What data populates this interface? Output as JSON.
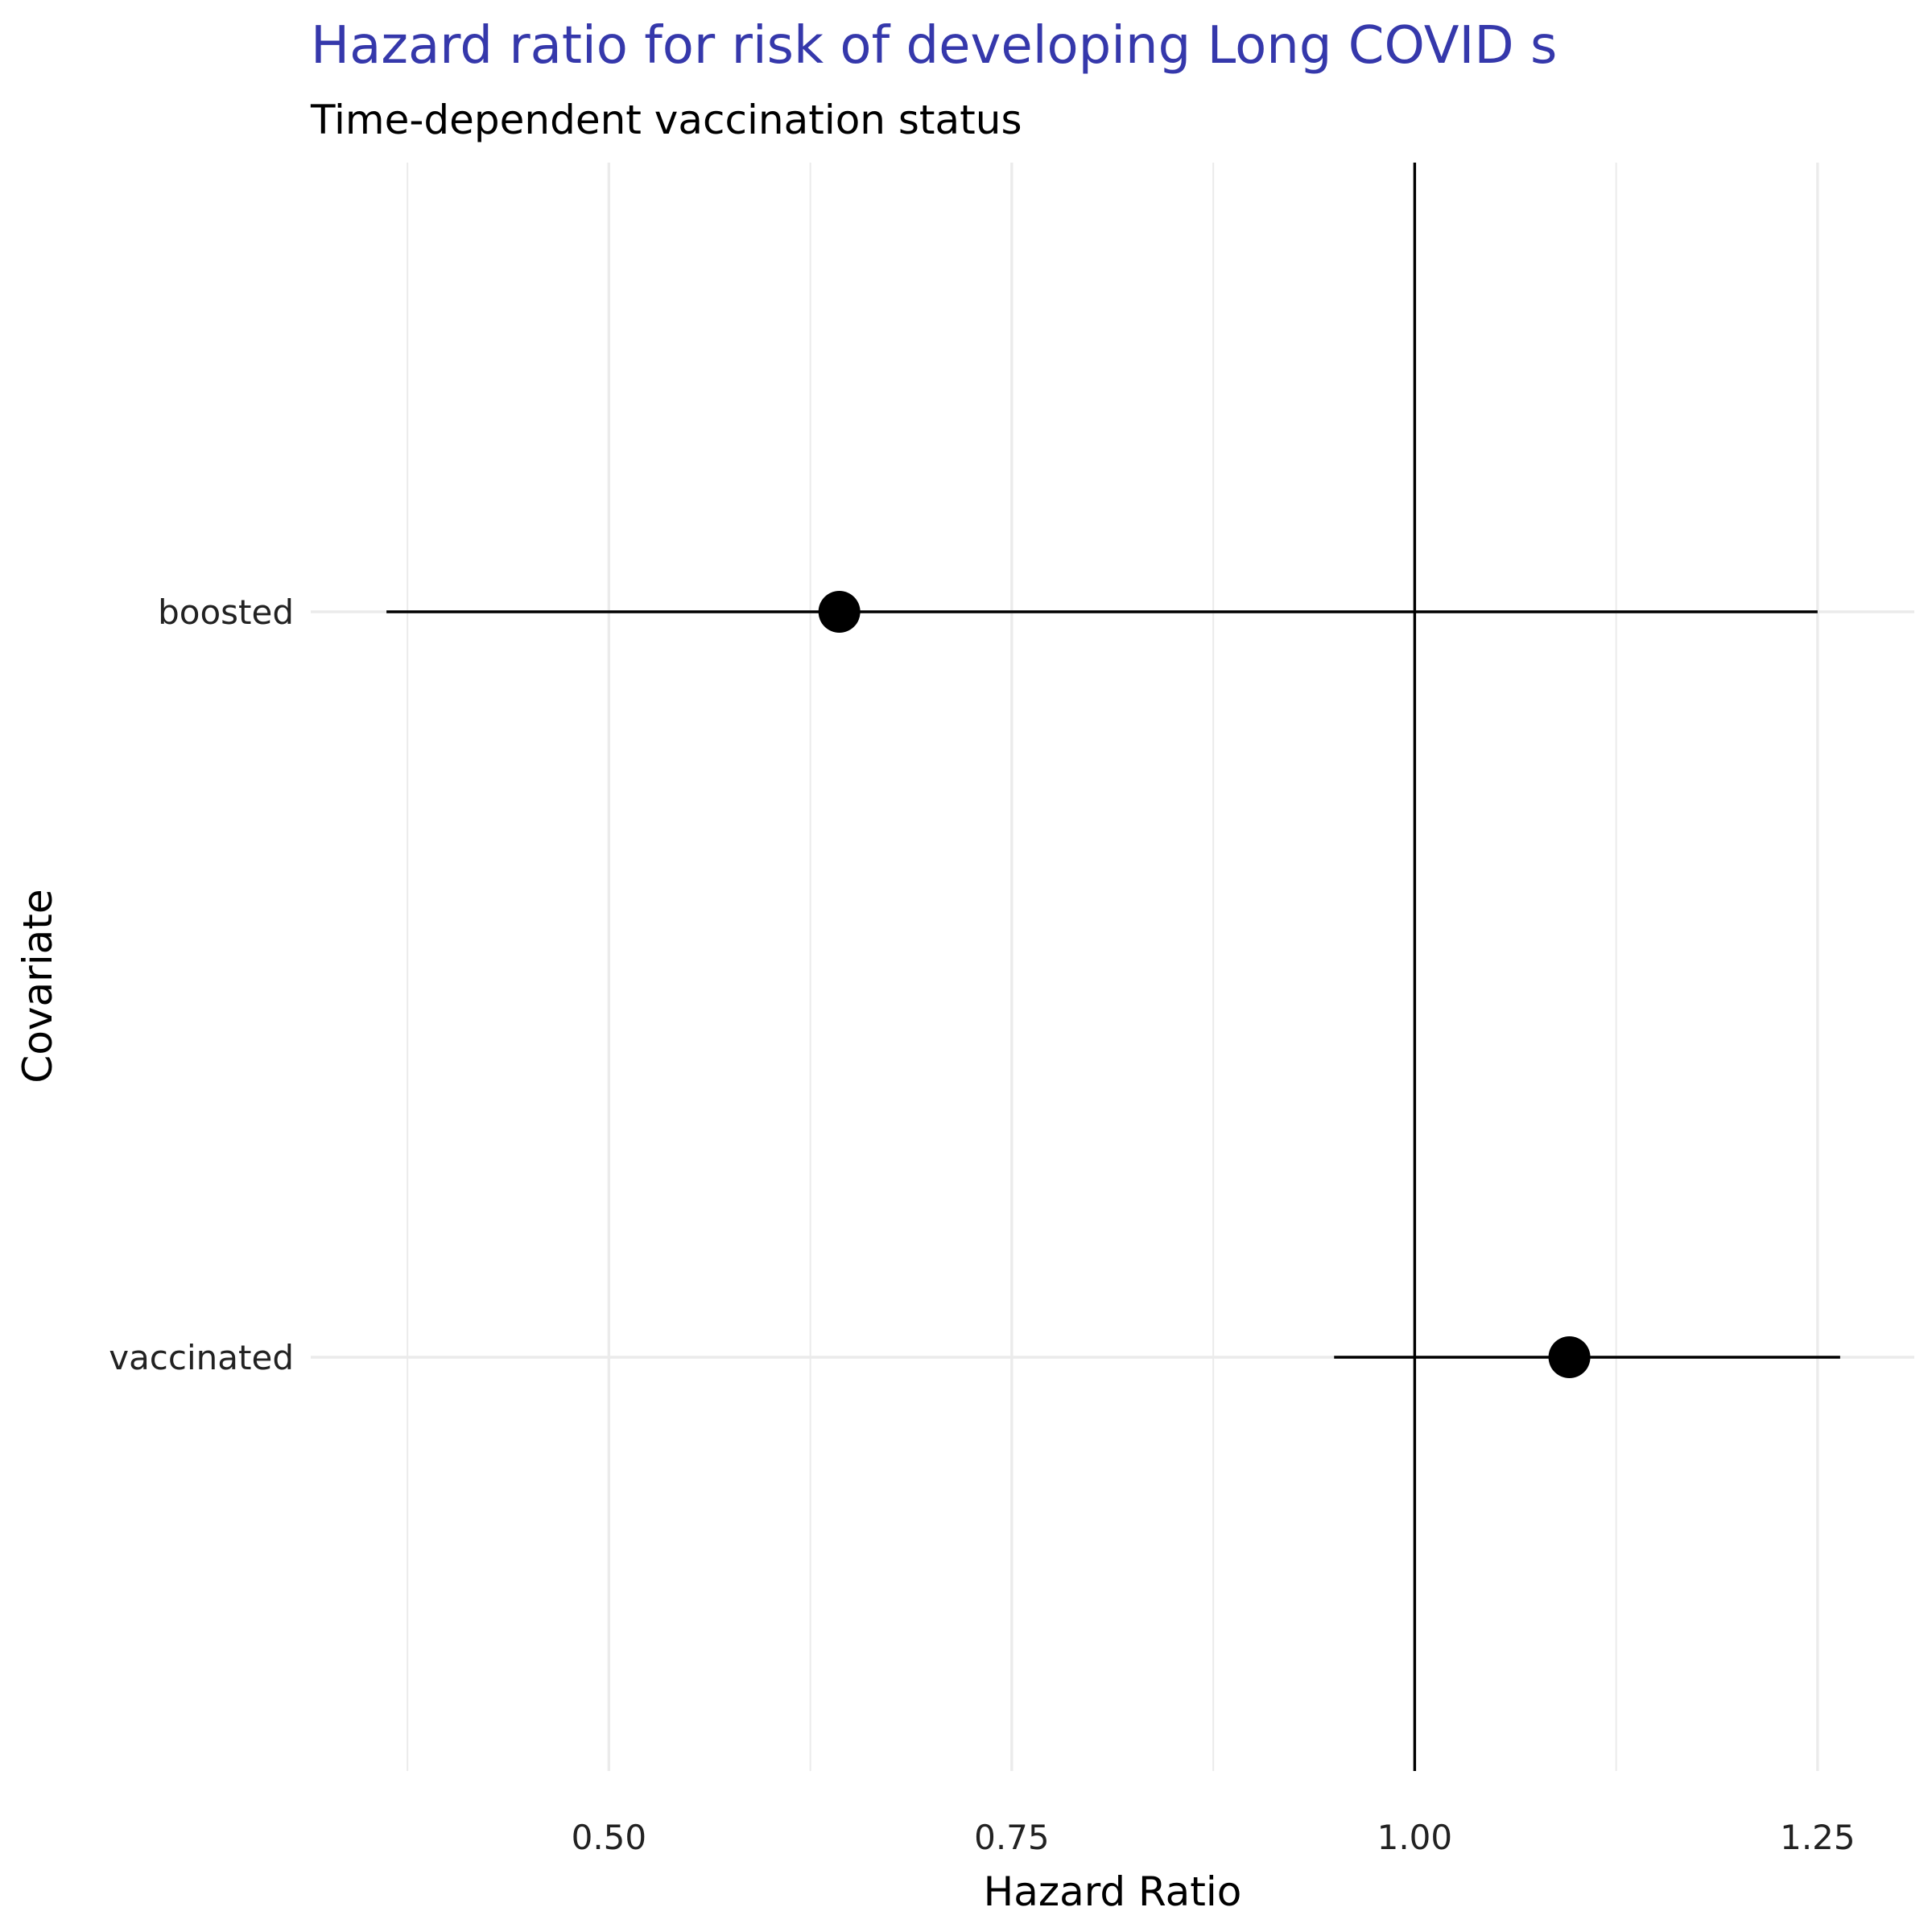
{
  "chart_data": {
    "type": "forest",
    "title": "Hazard ratio for risk of developing Long COVID s",
    "subtitle": "Time-dependent vaccination status",
    "xlabel": "Hazard Ratio",
    "ylabel": "Covariate",
    "xlim": [
      0.315,
      1.31
    ],
    "x_ticks": [
      0.5,
      0.75,
      1.0,
      1.25
    ],
    "x_tick_labels": [
      "0.50",
      "0.75",
      "1.00",
      "1.25"
    ],
    "reference_line": 1.0,
    "grid": true,
    "categories": [
      "boosted",
      "vaccinated"
    ],
    "estimates": [
      0.643,
      1.096
    ],
    "lower": [
      0.362,
      0.95
    ],
    "upper": [
      1.25,
      1.264
    ],
    "colors": {
      "title": "#3538AB",
      "marks": "#000000",
      "grid": "#EBEBEB"
    }
  }
}
